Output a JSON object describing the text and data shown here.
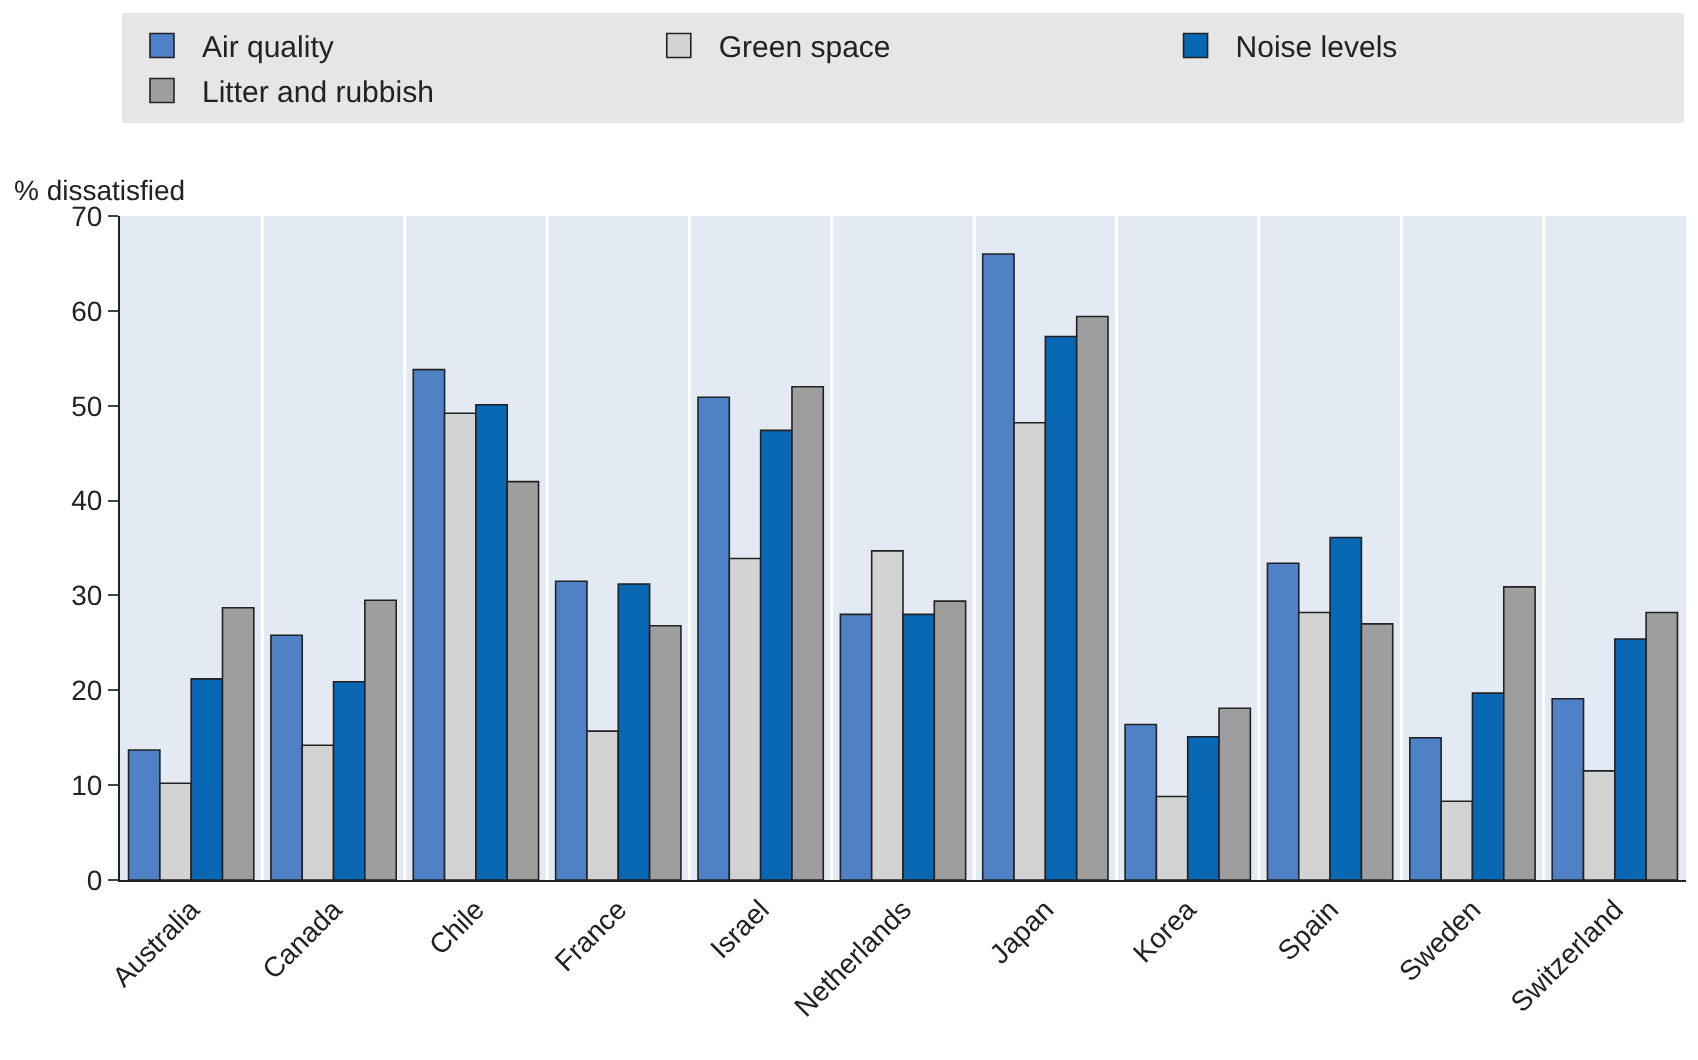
{
  "chart_data": {
    "type": "bar",
    "ylabel": "% dissatisfied",
    "categories": [
      "Australia",
      "Canada",
      "Chile",
      "France",
      "Israel",
      "Netherlands",
      "Japan",
      "Korea",
      "Spain",
      "Sweden",
      "Switzerland"
    ],
    "series": [
      {
        "name": "Air quality",
        "color": "#4f81c7",
        "values": [
          13.7,
          25.8,
          53.8,
          31.5,
          50.9,
          28.0,
          66.0,
          16.4,
          33.4,
          15.0,
          19.1
        ]
      },
      {
        "name": "Green space",
        "color": "#d3d3d3",
        "values": [
          10.2,
          14.2,
          49.2,
          15.7,
          33.9,
          34.7,
          48.2,
          8.8,
          28.2,
          8.3,
          11.5
        ]
      },
      {
        "name": "Noise levels",
        "color": "#0868b4",
        "values": [
          21.2,
          20.9,
          50.1,
          31.2,
          47.4,
          28.0,
          57.3,
          15.1,
          36.1,
          19.7,
          25.4
        ]
      },
      {
        "name": "Litter and rubbish",
        "color": "#9e9e9e",
        "values": [
          28.7,
          29.5,
          42.0,
          26.8,
          52.0,
          29.4,
          59.4,
          18.1,
          27.0,
          30.9,
          28.2
        ]
      }
    ],
    "ylim": [
      0,
      70
    ],
    "yticks": [
      0,
      10,
      20,
      30,
      40,
      50,
      60,
      70
    ],
    "grid": "x",
    "legend": "top"
  }
}
